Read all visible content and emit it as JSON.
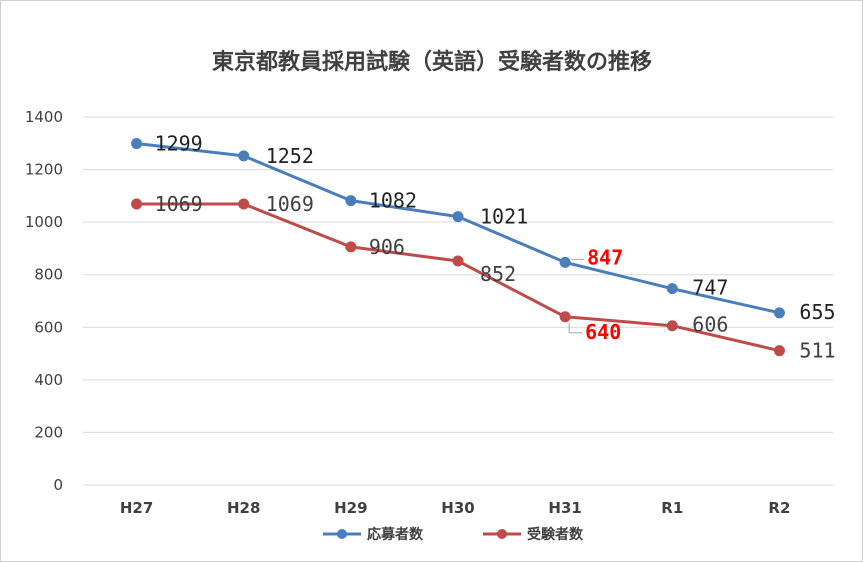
{
  "chart_data": {
    "type": "line",
    "title": "東京都教員採用試験（英語）受験者数の推移",
    "categories": [
      "H27",
      "H28",
      "H29",
      "H30",
      "H31",
      "R1",
      "R2"
    ],
    "ylim": [
      0,
      1400
    ],
    "yticks": [
      0,
      200,
      400,
      600,
      800,
      1000,
      1200,
      1400
    ],
    "ytick_labels": [
      "0",
      "200",
      "400",
      "600",
      "800",
      "1000",
      "1200",
      "1400"
    ],
    "grid": true,
    "legend_position": "bottom",
    "series": [
      {
        "name": "応募者数",
        "color": "#4a7ebb",
        "values": [
          1299,
          1252,
          1082,
          1021,
          847,
          747,
          655
        ],
        "labels": [
          "1299",
          "1252",
          "1082",
          "1021",
          "847",
          "747",
          "655"
        ],
        "label_colors": [
          "#222222",
          "#222222",
          "#222222",
          "#222222",
          "#ff0000",
          "#222222",
          "#222222"
        ]
      },
      {
        "name": "受験者数",
        "color": "#be4b48",
        "values": [
          1069,
          1069,
          906,
          852,
          640,
          606,
          511
        ],
        "labels": [
          "1069",
          "1069",
          "906",
          "852",
          "640",
          "606",
          "511"
        ],
        "label_colors": [
          "#404040",
          "#404040",
          "#404040",
          "#404040",
          "#ff0000",
          "#404040",
          "#404040"
        ]
      }
    ]
  }
}
